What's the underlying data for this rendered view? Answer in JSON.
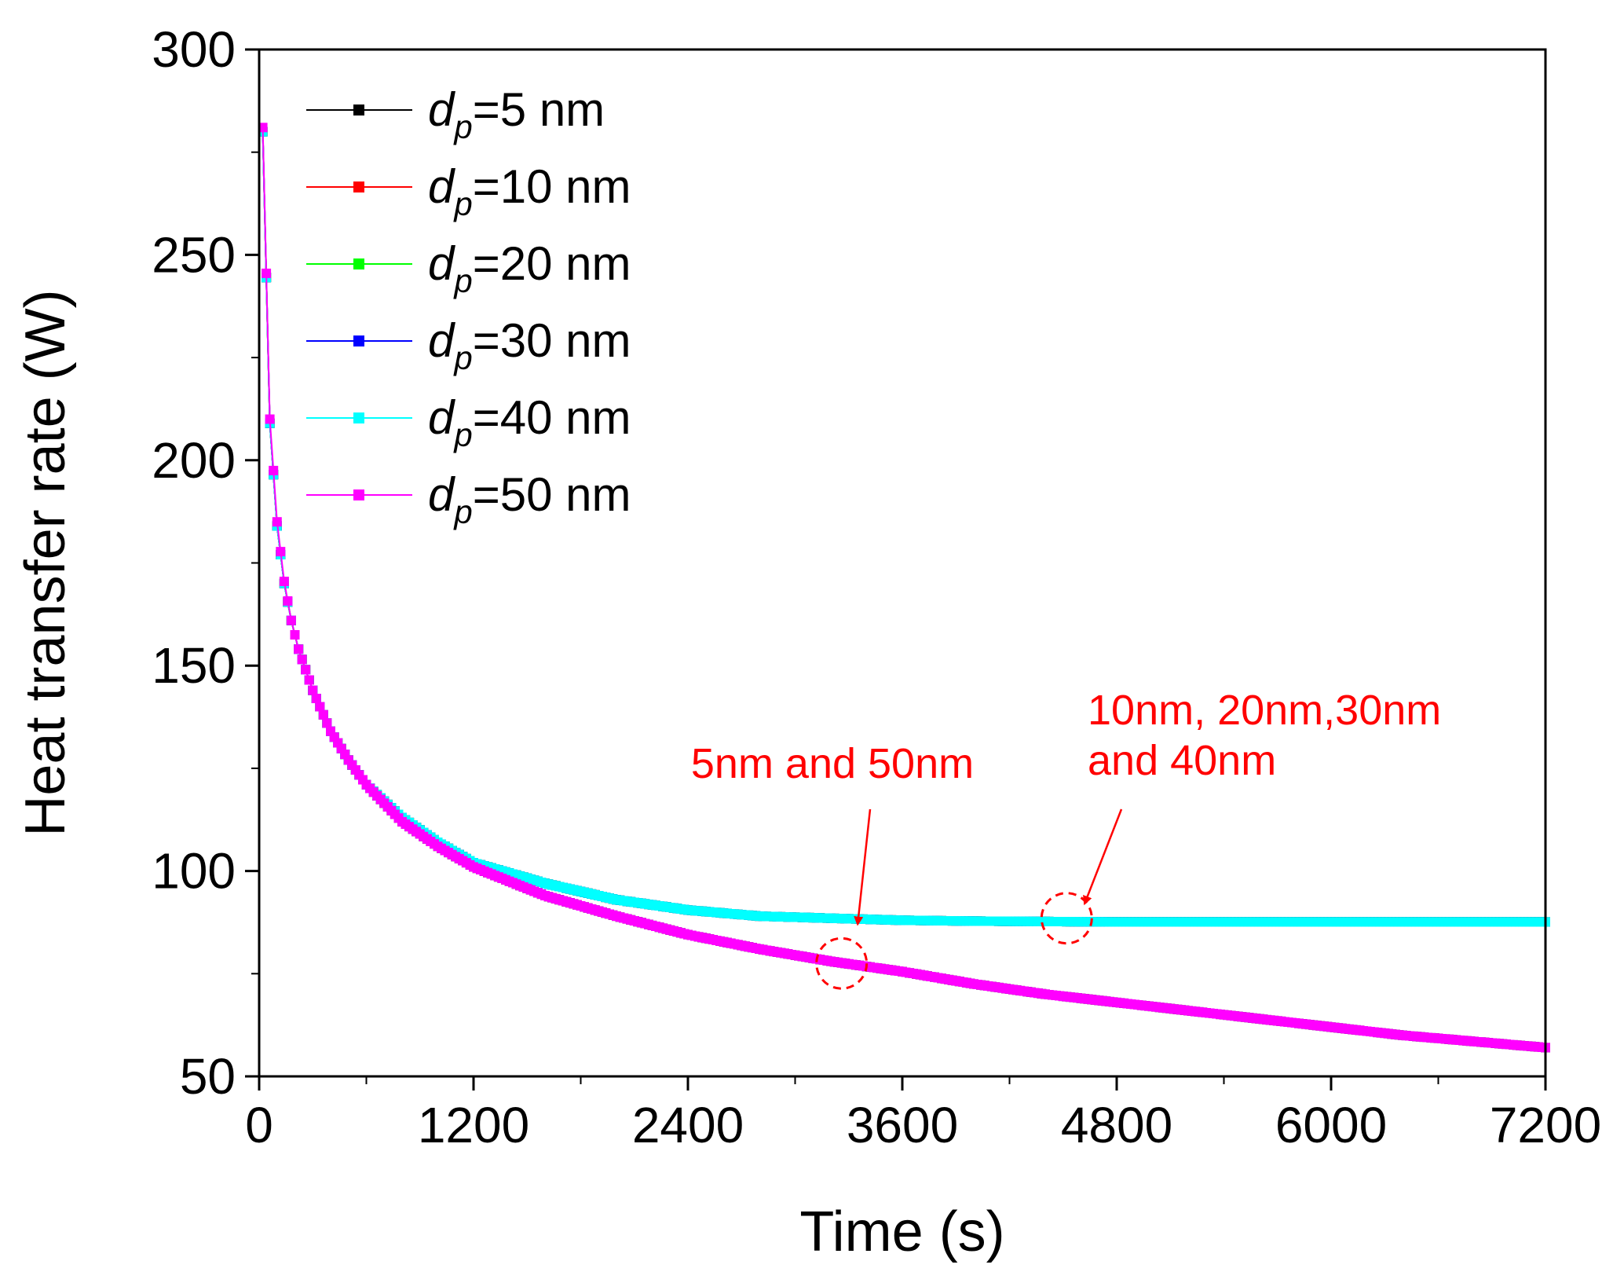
{
  "chart_data": {
    "type": "line",
    "title": "",
    "xlabel": "Time (s)",
    "ylabel": "Heat transfer rate (W)",
    "xlim": [
      0,
      7200
    ],
    "ylim": [
      50,
      300
    ],
    "xticks": [
      0,
      1200,
      2400,
      3600,
      4800,
      6000,
      7200
    ],
    "yticks": [
      50,
      100,
      150,
      200,
      250,
      300
    ],
    "grid": false,
    "legend_position": "top-left",
    "legend_symbol": "d",
    "legend_subscript": "p",
    "series": [
      {
        "name": "d_p=5 nm",
        "legend_label": "=5 nm",
        "color": "#000000",
        "group": "low",
        "x": [
          20,
          60,
          100,
          140,
          180,
          220,
          300,
          400,
          500,
          600,
          800,
          1000,
          1200,
          1600,
          2000,
          2400,
          2800,
          3200,
          3600,
          4000,
          4400,
          4800,
          5200,
          5600,
          6000,
          6400,
          6800,
          7200
        ],
        "y": [
          280,
          209,
          184,
          170,
          161,
          154,
          144,
          134,
          127,
          121,
          112,
          106,
          101,
          94,
          89,
          84.5,
          81,
          78,
          75.5,
          72.5,
          70,
          68,
          66,
          64,
          62,
          60,
          58.5,
          57
        ]
      },
      {
        "name": "d_p=10 nm",
        "legend_label": "=10 nm",
        "color": "#ff0000",
        "group": "high",
        "x": [
          20,
          60,
          100,
          140,
          180,
          220,
          300,
          400,
          500,
          600,
          800,
          1000,
          1200,
          1600,
          2000,
          2400,
          2800,
          3200,
          3600,
          4000,
          4400,
          4800,
          5200,
          5600,
          6000,
          6400,
          6800,
          7200
        ],
        "y": [
          280,
          209,
          184,
          170,
          161,
          154,
          144,
          134,
          127,
          121,
          113,
          107,
          102,
          97,
          93,
          90.5,
          89,
          88.5,
          88,
          87.8,
          87.7,
          87.6,
          87.6,
          87.6,
          87.6,
          87.6,
          87.6,
          87.6
        ]
      },
      {
        "name": "d_p=20 nm",
        "legend_label": "=20 nm",
        "color": "#00ff00",
        "group": "high",
        "x": [
          20,
          60,
          100,
          140,
          180,
          220,
          300,
          400,
          500,
          600,
          800,
          1000,
          1200,
          1600,
          2000,
          2400,
          2800,
          3200,
          3600,
          4000,
          4400,
          4800,
          5200,
          5600,
          6000,
          6400,
          6800,
          7200
        ],
        "y": [
          280,
          209,
          184,
          170,
          161,
          154,
          144,
          134,
          127,
          121,
          113,
          107,
          102,
          97,
          93,
          90.5,
          89,
          88.5,
          88,
          87.8,
          87.7,
          87.6,
          87.6,
          87.6,
          87.6,
          87.6,
          87.6,
          87.6
        ]
      },
      {
        "name": "d_p=30 nm",
        "legend_label": "=30 nm",
        "color": "#0000ff",
        "group": "high",
        "x": [
          20,
          60,
          100,
          140,
          180,
          220,
          300,
          400,
          500,
          600,
          800,
          1000,
          1200,
          1600,
          2000,
          2400,
          2800,
          3200,
          3600,
          4000,
          4400,
          4800,
          5200,
          5600,
          6000,
          6400,
          6800,
          7200
        ],
        "y": [
          280,
          209,
          184,
          170,
          161,
          154,
          144,
          134,
          127,
          121,
          113,
          107,
          102,
          97,
          93,
          90.5,
          89,
          88.5,
          88,
          87.8,
          87.7,
          87.6,
          87.6,
          87.6,
          87.6,
          87.6,
          87.6,
          87.6
        ]
      },
      {
        "name": "d_p=40 nm",
        "legend_label": "=40 nm",
        "color": "#00ffff",
        "group": "high",
        "x": [
          20,
          60,
          100,
          140,
          180,
          220,
          300,
          400,
          500,
          600,
          800,
          1000,
          1200,
          1600,
          2000,
          2400,
          2800,
          3200,
          3600,
          4000,
          4400,
          4800,
          5200,
          5600,
          6000,
          6400,
          6800,
          7200
        ],
        "y": [
          280,
          209,
          184,
          170,
          161,
          154,
          144,
          134,
          127,
          121,
          113,
          107,
          102,
          97,
          93,
          90.5,
          89,
          88.5,
          88,
          87.8,
          87.7,
          87.6,
          87.6,
          87.6,
          87.6,
          87.6,
          87.6,
          87.6
        ]
      },
      {
        "name": "d_p=50 nm",
        "legend_label": "=50 nm",
        "color": "#ff00ff",
        "group": "low",
        "x": [
          20,
          60,
          100,
          140,
          180,
          220,
          300,
          400,
          500,
          600,
          800,
          1000,
          1200,
          1600,
          2000,
          2400,
          2800,
          3200,
          3600,
          4000,
          4400,
          4800,
          5200,
          5600,
          6000,
          6400,
          6800,
          7200
        ],
        "y": [
          281,
          210,
          185,
          170.5,
          161,
          154,
          144,
          134,
          127,
          121,
          112,
          106,
          101,
          94,
          89,
          84.5,
          81,
          78,
          75.5,
          72.5,
          70,
          68,
          66,
          64,
          62,
          60,
          58.5,
          57
        ]
      }
    ],
    "annotations": [
      {
        "lines": [
          "5nm and 50nm"
        ],
        "arrow_to": {
          "x": 3350,
          "y": 87
        },
        "circle_at": {
          "x": 3260,
          "y": 77.5
        }
      },
      {
        "lines": [
          "10nm, 20nm,30nm",
          "and 40nm"
        ],
        "arrow_to": {
          "x": 4620,
          "y": 92
        },
        "circle_at": {
          "x": 4520,
          "y": 88.5
        }
      }
    ]
  }
}
